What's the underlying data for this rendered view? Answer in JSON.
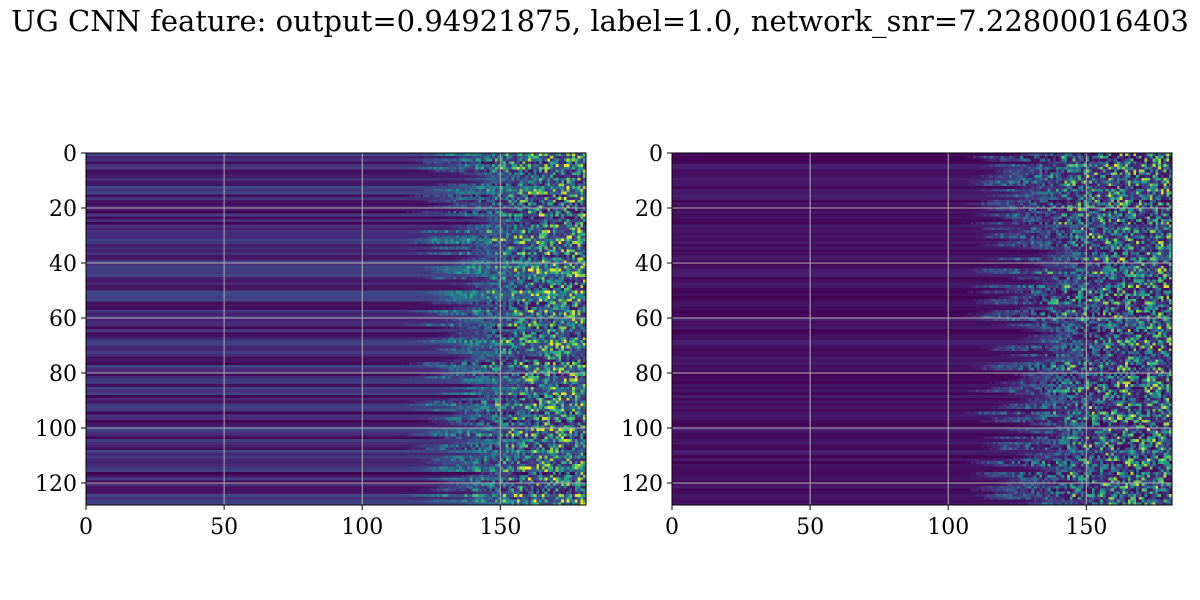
{
  "title": "UG CNN feature: output=0.94921875, label=1.0, network_snr=7.22800016403",
  "colormap": {
    "name": "viridis",
    "stops": [
      "#440154",
      "#482878",
      "#3e4989",
      "#31688e",
      "#26828e",
      "#1f9e89",
      "#35b779",
      "#6ece58",
      "#b5de2b",
      "#fde725"
    ]
  },
  "chart_data": [
    {
      "type": "heatmap",
      "xlabel": "",
      "ylabel": "",
      "xlim": [
        0,
        181
      ],
      "ylim": [
        128,
        0
      ],
      "x_ticks": [
        "0",
        "50",
        "100",
        "150"
      ],
      "y_ticks": [
        "0",
        "20",
        "40",
        "60",
        "80",
        "100",
        "120"
      ],
      "grid": true,
      "pattern": {
        "n_rows": 128,
        "n_cols": 181,
        "background": "dark purple with horizontal banding on left side",
        "noise_onset_x": [
          125,
          150
        ],
        "bright_region_x": [
          145,
          181
        ]
      }
    },
    {
      "type": "heatmap",
      "xlabel": "",
      "ylabel": "",
      "xlim": [
        0,
        181
      ],
      "ylim": [
        128,
        0
      ],
      "x_ticks": [
        "0",
        "50",
        "100",
        "150"
      ],
      "y_ticks": [
        "0",
        "20",
        "40",
        "60",
        "80",
        "100",
        "120"
      ],
      "grid": true,
      "pattern": {
        "n_rows": 128,
        "n_cols": 181,
        "background": "dark purple with faint horizontal banding",
        "noise_onset_x": [
          115,
          145
        ],
        "bright_region_x": [
          140,
          181
        ]
      }
    }
  ]
}
